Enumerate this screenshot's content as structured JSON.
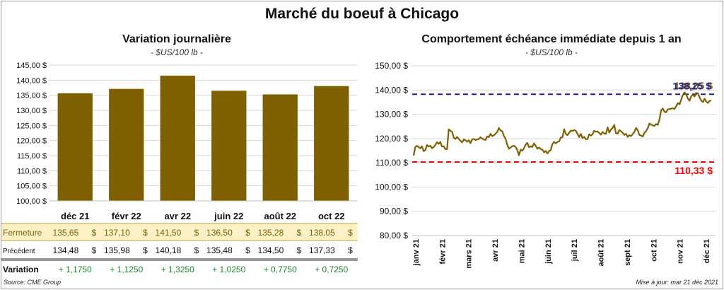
{
  "main_title": "Marché du boeuf à Chicago",
  "left_title": "Variation  journalière",
  "left_unit": "- $US/100 lb -",
  "right_title": "Comportement  échéance immédiate depuis 1 an",
  "right_unit": "- $US/100 lb -",
  "source": "Source: CME Group",
  "updated": "Mise à jour: mar 21 déc 2021",
  "colors": {
    "bar": "#7f6000",
    "line": "#7f6000",
    "high_line": "#1f1fa0",
    "low_line": "#ff0000",
    "fermeture_bg": "#fdf1c7",
    "positive": "#1a8a2a"
  },
  "chart_data": [
    {
      "type": "bar",
      "title": "Variation  journalière",
      "categories": [
        "déc 21",
        "févr 22",
        "avr 22",
        "juin 22",
        "août 22",
        "oct 22"
      ],
      "values": [
        135.65,
        137.1,
        141.5,
        136.5,
        135.28,
        138.05
      ],
      "ylim": [
        100,
        145
      ],
      "yticks": [
        "100,00 $",
        "105,00 $",
        "110,00 $",
        "115,00 $",
        "120,00 $",
        "125,00 $",
        "130,00 $",
        "135,00 $",
        "140,00 $",
        "145,00 $"
      ],
      "grid": true,
      "table": {
        "rows": [
          {
            "label": "Fermeture",
            "values": [
              "135,65",
              "137,10",
              "141,50",
              "136,50",
              "135,28",
              "138,05"
            ],
            "unit": "$"
          },
          {
            "label": "Précédent",
            "values": [
              "134,48",
              "135,98",
              "140,18",
              "135,48",
              "134,50",
              "137,33"
            ],
            "unit": "$"
          },
          {
            "label": "Variation",
            "values": [
              "+ 1,1750",
              "+ 1,1250",
              "+ 1,3250",
              "+ 1,0250",
              "+ 0,7750",
              "+ 0,7250"
            ]
          }
        ]
      }
    },
    {
      "type": "line",
      "title": "Comportement  échéance immédiate depuis 1 an",
      "ylim": [
        80,
        150
      ],
      "yticks": [
        "80,00 $",
        "90,00 $",
        "100,00 $",
        "110,00 $",
        "120,00 $",
        "130,00 $",
        "140,00 $",
        "150,00 $"
      ],
      "x_labels": [
        "janv 21",
        "févr 21",
        "mars 21",
        "avr 21",
        "mai 21",
        "juin 21",
        "juil 21",
        "août 21",
        "sept 21",
        "oct 21",
        "nov 21",
        "déc 21"
      ],
      "series": [
        {
          "values": [
            113.0,
            116.5,
            117.0,
            116.5,
            116.0,
            116.8,
            114.8,
            115.2,
            117.3,
            116.7,
            117.0,
            116.0,
            116.5,
            117.4,
            118.5,
            117.8,
            118.6,
            116.7,
            116.8,
            115.6,
            115.6,
            123.8,
            123.2,
            122.8,
            120.4,
            119.8,
            120.7,
            119.8,
            119.1,
            118.4,
            119.6,
            119.3,
            118.7,
            119.3,
            118.1,
            119.6,
            119.8,
            119.4,
            119.6,
            119.8,
            120.5,
            120.0,
            119.6,
            119.4,
            120.9,
            120.6,
            121.9,
            121.0,
            121.3,
            122.0,
            122.7,
            124.4,
            123.3,
            123.0,
            121.1,
            119.8,
            117.5,
            115.8,
            116.3,
            116.8,
            117.0,
            116.5,
            115.3,
            113.1,
            115.4,
            115.0,
            116.0,
            117.5,
            118.2,
            116.4,
            116.8,
            116.5,
            118.0,
            117.0,
            115.8,
            116.3,
            115.6,
            115.4,
            114.3,
            114.9,
            113.8,
            114.8,
            115.2,
            117.7,
            118.6,
            118.0,
            118.6,
            118.8,
            120.4,
            120.5,
            123.8,
            121.9,
            121.4,
            122.4,
            123.3,
            123.1,
            123.5,
            123.2,
            121.9,
            120.6,
            121.9,
            120.2,
            120.7,
            119.7,
            119.8,
            121.7,
            121.2,
            121.8,
            123.2,
            122.8,
            122.9,
            122.3,
            121.6,
            122.7,
            122.1,
            121.9,
            124.6,
            122.5,
            123.7,
            124.4,
            125.6,
            122.2,
            122.0,
            123.5,
            123.0,
            122.4,
            121.5,
            122.0,
            120.7,
            121.4,
            121.0,
            121.8,
            122.7,
            124.4,
            123.5,
            121.5,
            121.2,
            120.8,
            122.3,
            123.1,
            124.2,
            126.2,
            125.8,
            125.4,
            125.2,
            126.0,
            125.6,
            127.8,
            131.6,
            132.4,
            131.0,
            130.8,
            132.0,
            132.2,
            132.3,
            132.5,
            132.2,
            133.3,
            134.6,
            134.1,
            136.0,
            138.0,
            139.0,
            138.2,
            136.5,
            135.6,
            137.4,
            138.0,
            137.3,
            138.8,
            138.6,
            137.0,
            135.7,
            135.0,
            136.4,
            135.2,
            134.7,
            135.5,
            135.7
          ]
        }
      ],
      "annotations": [
        {
          "label": "138,05 $",
          "value": 138.05
        },
        {
          "label": "138,25 $",
          "value": 138.25
        },
        {
          "label": "110,33 $",
          "value": 110.33
        }
      ]
    }
  ]
}
